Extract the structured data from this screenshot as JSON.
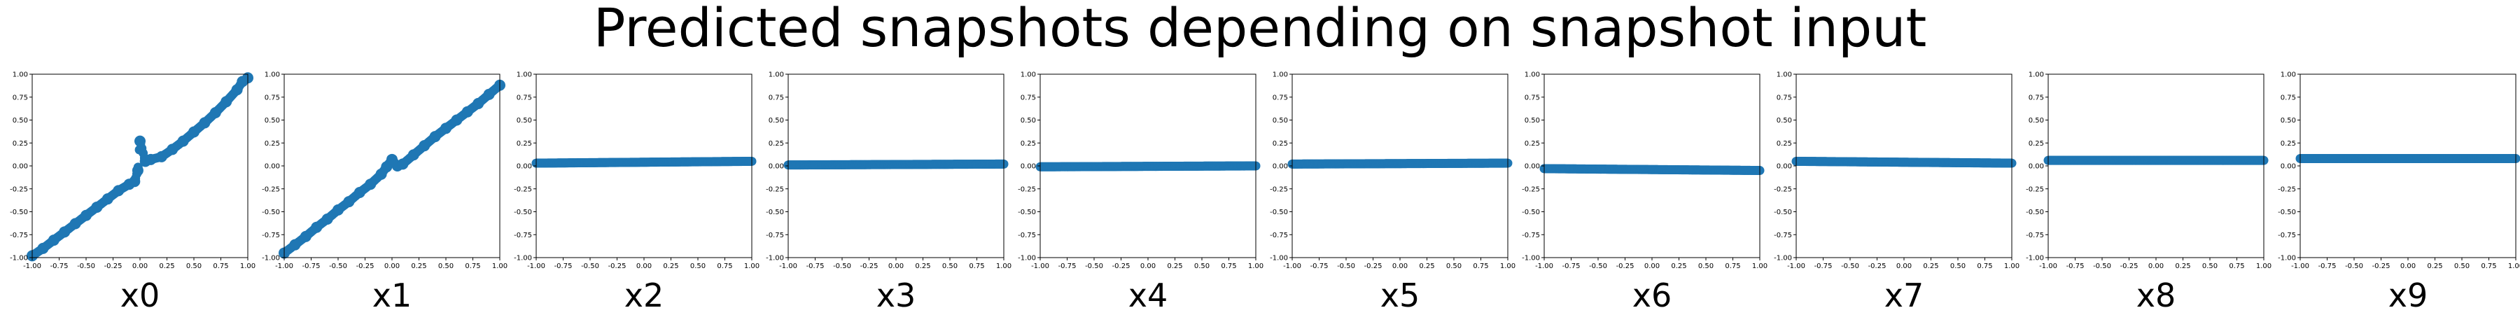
{
  "figure": {
    "title": "Predicted snapshots depending on snapshot input"
  },
  "chart_data": [
    {
      "type": "scatter",
      "xlabel": "x0",
      "xlim": [
        -1,
        1
      ],
      "ylim": [
        -1,
        1
      ],
      "xticks": [
        "-1.00",
        "-0.75",
        "-0.50",
        "-0.25",
        "0.00",
        "0.25",
        "0.50",
        "0.75",
        "1.00"
      ],
      "yticks": [
        "-1.00",
        "-0.75",
        "-0.50",
        "-0.25",
        "0.00",
        "0.25",
        "0.50",
        "0.75",
        "1.00"
      ],
      "marker_color": "#1f77b4",
      "x": [
        -1.0,
        -0.9,
        -0.8,
        -0.7,
        -0.6,
        -0.5,
        -0.4,
        -0.3,
        -0.2,
        -0.1,
        -0.05,
        -0.02,
        0.0,
        0.05,
        0.1,
        0.2,
        0.3,
        0.4,
        0.5,
        0.6,
        0.7,
        0.8,
        0.9,
        0.95,
        1.0
      ],
      "y": [
        -0.98,
        -0.9,
        -0.81,
        -0.72,
        -0.63,
        -0.54,
        -0.45,
        -0.36,
        -0.27,
        -0.2,
        -0.17,
        -0.05,
        0.27,
        0.05,
        0.07,
        0.1,
        0.18,
        0.27,
        0.37,
        0.47,
        0.58,
        0.7,
        0.83,
        0.92,
        0.96
      ]
    },
    {
      "type": "scatter",
      "xlabel": "x1",
      "xlim": [
        -1,
        1
      ],
      "ylim": [
        -1,
        1
      ],
      "xticks": [
        "-1.00",
        "-0.75",
        "-0.50",
        "-0.25",
        "0.00",
        "0.25",
        "0.50",
        "0.75",
        "1.00"
      ],
      "yticks": [
        "-1.00",
        "-0.75",
        "-0.50",
        "-0.25",
        "0.00",
        "0.25",
        "0.50",
        "0.75",
        "1.00"
      ],
      "marker_color": "#1f77b4",
      "x": [
        -1.0,
        -0.9,
        -0.8,
        -0.7,
        -0.6,
        -0.5,
        -0.4,
        -0.3,
        -0.2,
        -0.1,
        -0.05,
        0.0,
        0.05,
        0.1,
        0.2,
        0.3,
        0.4,
        0.5,
        0.6,
        0.7,
        0.8,
        0.9,
        1.0
      ],
      "y": [
        -0.95,
        -0.86,
        -0.77,
        -0.67,
        -0.58,
        -0.48,
        -0.39,
        -0.29,
        -0.2,
        -0.09,
        -0.01,
        0.07,
        0.0,
        0.02,
        0.12,
        0.22,
        0.32,
        0.41,
        0.5,
        0.59,
        0.68,
        0.78,
        0.88
      ]
    },
    {
      "type": "scatter",
      "xlabel": "x2",
      "xlim": [
        -1,
        1
      ],
      "ylim": [
        -1,
        1
      ],
      "xticks": [
        "-1.00",
        "-0.75",
        "-0.50",
        "-0.25",
        "0.00",
        "0.25",
        "0.50",
        "0.75",
        "1.00"
      ],
      "yticks": [
        "-1.00",
        "-0.75",
        "-0.50",
        "-0.25",
        "0.00",
        "0.25",
        "0.50",
        "0.75",
        "1.00"
      ],
      "marker_color": "#1f77b4",
      "x": [
        -1,
        1
      ],
      "y": [
        0.03,
        0.05
      ]
    },
    {
      "type": "scatter",
      "xlabel": "x3",
      "xlim": [
        -1,
        1
      ],
      "ylim": [
        -1,
        1
      ],
      "xticks": [
        "-1.00",
        "-0.75",
        "-0.50",
        "-0.25",
        "0.00",
        "0.25",
        "0.50",
        "0.75",
        "1.00"
      ],
      "yticks": [
        "-1.00",
        "-0.75",
        "-0.50",
        "-0.25",
        "0.00",
        "0.25",
        "0.50",
        "0.75",
        "1.00"
      ],
      "marker_color": "#1f77b4",
      "x": [
        -1,
        1
      ],
      "y": [
        0.01,
        0.02
      ]
    },
    {
      "type": "scatter",
      "xlabel": "x4",
      "xlim": [
        -1,
        1
      ],
      "ylim": [
        -1,
        1
      ],
      "xticks": [
        "-1.00",
        "-0.75",
        "-0.50",
        "-0.25",
        "0.00",
        "0.25",
        "0.50",
        "0.75",
        "1.00"
      ],
      "yticks": [
        "-1.00",
        "-0.75",
        "-0.50",
        "-0.25",
        "0.00",
        "0.25",
        "0.50",
        "0.75",
        "1.00"
      ],
      "marker_color": "#1f77b4",
      "x": [
        -1,
        1
      ],
      "y": [
        -0.01,
        0.0
      ]
    },
    {
      "type": "scatter",
      "xlabel": "x5",
      "xlim": [
        -1,
        1
      ],
      "ylim": [
        -1,
        1
      ],
      "xticks": [
        "-1.00",
        "-0.75",
        "-0.50",
        "-0.25",
        "0.00",
        "0.25",
        "0.50",
        "0.75",
        "1.00"
      ],
      "yticks": [
        "-1.00",
        "-0.75",
        "-0.50",
        "-0.25",
        "0.00",
        "0.25",
        "0.50",
        "0.75",
        "1.00"
      ],
      "marker_color": "#1f77b4",
      "x": [
        -1,
        1
      ],
      "y": [
        0.02,
        0.03
      ]
    },
    {
      "type": "scatter",
      "xlabel": "x6",
      "xlim": [
        -1,
        1
      ],
      "ylim": [
        -1,
        1
      ],
      "xticks": [
        "-1.00",
        "-0.75",
        "-0.50",
        "-0.25",
        "0.00",
        "0.25",
        "0.50",
        "0.75",
        "1.00"
      ],
      "yticks": [
        "-1.00",
        "-0.75",
        "-0.50",
        "-0.25",
        "0.00",
        "0.25",
        "0.50",
        "0.75",
        "1.00"
      ],
      "marker_color": "#1f77b4",
      "x": [
        -1,
        1
      ],
      "y": [
        -0.03,
        -0.05
      ]
    },
    {
      "type": "scatter",
      "xlabel": "x7",
      "xlim": [
        -1,
        1
      ],
      "ylim": [
        -1,
        1
      ],
      "xticks": [
        "-1.00",
        "-0.75",
        "-0.50",
        "-0.25",
        "0.00",
        "0.25",
        "0.50",
        "0.75",
        "1.00"
      ],
      "yticks": [
        "-1.00",
        "-0.75",
        "-0.50",
        "-0.25",
        "0.00",
        "0.25",
        "0.50",
        "0.75",
        "1.00"
      ],
      "marker_color": "#1f77b4",
      "x": [
        -1,
        1
      ],
      "y": [
        0.05,
        0.03
      ]
    },
    {
      "type": "scatter",
      "xlabel": "x8",
      "xlim": [
        -1,
        1
      ],
      "ylim": [
        -1,
        1
      ],
      "xticks": [
        "-1.00",
        "-0.75",
        "-0.50",
        "-0.25",
        "0.00",
        "0.25",
        "0.50",
        "0.75",
        "1.00"
      ],
      "yticks": [
        "-1.00",
        "-0.75",
        "-0.50",
        "-0.25",
        "0.00",
        "0.25",
        "0.50",
        "0.75",
        "1.00"
      ],
      "marker_color": "#1f77b4",
      "x": [
        -1,
        1
      ],
      "y": [
        0.06,
        0.06
      ]
    },
    {
      "type": "scatter",
      "xlabel": "x9",
      "xlim": [
        -1,
        1
      ],
      "ylim": [
        -1,
        1
      ],
      "xticks": [
        "-1.00",
        "-0.75",
        "-0.50",
        "-0.25",
        "0.00",
        "0.25",
        "0.50",
        "0.75",
        "1.00"
      ],
      "yticks": [
        "-1.00",
        "-0.75",
        "-0.50",
        "-0.25",
        "0.00",
        "0.25",
        "0.50",
        "0.75",
        "1.00"
      ],
      "marker_color": "#1f77b4",
      "x": [
        -1,
        1
      ],
      "y": [
        0.08,
        0.08
      ]
    }
  ]
}
